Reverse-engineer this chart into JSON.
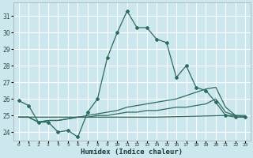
{
  "xlabel": "Humidex (Indice chaleur)",
  "bg_color": "#cce8ee",
  "grid_color": "#ffffff",
  "line_color": "#2d6b5e",
  "xlim": [
    -0.5,
    23.5
  ],
  "ylim": [
    23.5,
    31.8
  ],
  "yticks": [
    24,
    25,
    26,
    27,
    28,
    29,
    30,
    31
  ],
  "xticks": [
    0,
    1,
    2,
    3,
    4,
    5,
    6,
    7,
    8,
    9,
    10,
    11,
    12,
    13,
    14,
    15,
    16,
    17,
    18,
    19,
    20,
    21,
    22,
    23
  ],
  "xtick_labels": [
    "0",
    "1",
    "2",
    "3",
    "4",
    "5",
    "6",
    "7",
    "8",
    "9",
    "10",
    "11",
    "12",
    "13",
    "14",
    "15",
    "16",
    "17",
    "18",
    "19",
    "20",
    "21",
    "22",
    "23"
  ],
  "main_x": [
    0,
    1,
    2,
    3,
    4,
    5,
    6,
    7,
    8,
    9,
    10,
    11,
    12,
    13,
    14,
    15,
    16,
    17,
    18,
    19,
    20,
    21,
    22,
    23
  ],
  "main_y": [
    25.9,
    25.6,
    24.6,
    24.6,
    24.0,
    24.1,
    23.7,
    25.2,
    26.0,
    28.5,
    30.0,
    31.3,
    30.3,
    30.3,
    29.6,
    29.4,
    27.3,
    28.0,
    26.7,
    26.5,
    25.8,
    25.0,
    24.9,
    24.9
  ],
  "line2_x": [
    0,
    1,
    2,
    3,
    4,
    5,
    6,
    7,
    8,
    9,
    10,
    11,
    12,
    13,
    14,
    15,
    16,
    17,
    18,
    19,
    20,
    21,
    22,
    23
  ],
  "line2_y": [
    24.9,
    24.9,
    24.6,
    24.7,
    24.7,
    24.8,
    24.9,
    24.9,
    25.0,
    25.0,
    25.1,
    25.2,
    25.2,
    25.3,
    25.3,
    25.4,
    25.5,
    25.5,
    25.6,
    25.7,
    26.0,
    25.2,
    25.0,
    24.9
  ],
  "line3_x": [
    0,
    1,
    2,
    3,
    4,
    5,
    6,
    7,
    8,
    9,
    10,
    11,
    12,
    13,
    14,
    15,
    16,
    17,
    18,
    19,
    20,
    21,
    22,
    23
  ],
  "line3_y": [
    24.9,
    24.9,
    24.6,
    24.7,
    24.7,
    24.8,
    24.9,
    25.0,
    25.1,
    25.2,
    25.3,
    25.5,
    25.6,
    25.7,
    25.8,
    25.9,
    26.0,
    26.2,
    26.4,
    26.6,
    26.7,
    25.5,
    25.0,
    24.9
  ],
  "line4_x": [
    0,
    7,
    14,
    21,
    23
  ],
  "line4_y": [
    24.9,
    24.9,
    24.9,
    25.0,
    25.0
  ]
}
